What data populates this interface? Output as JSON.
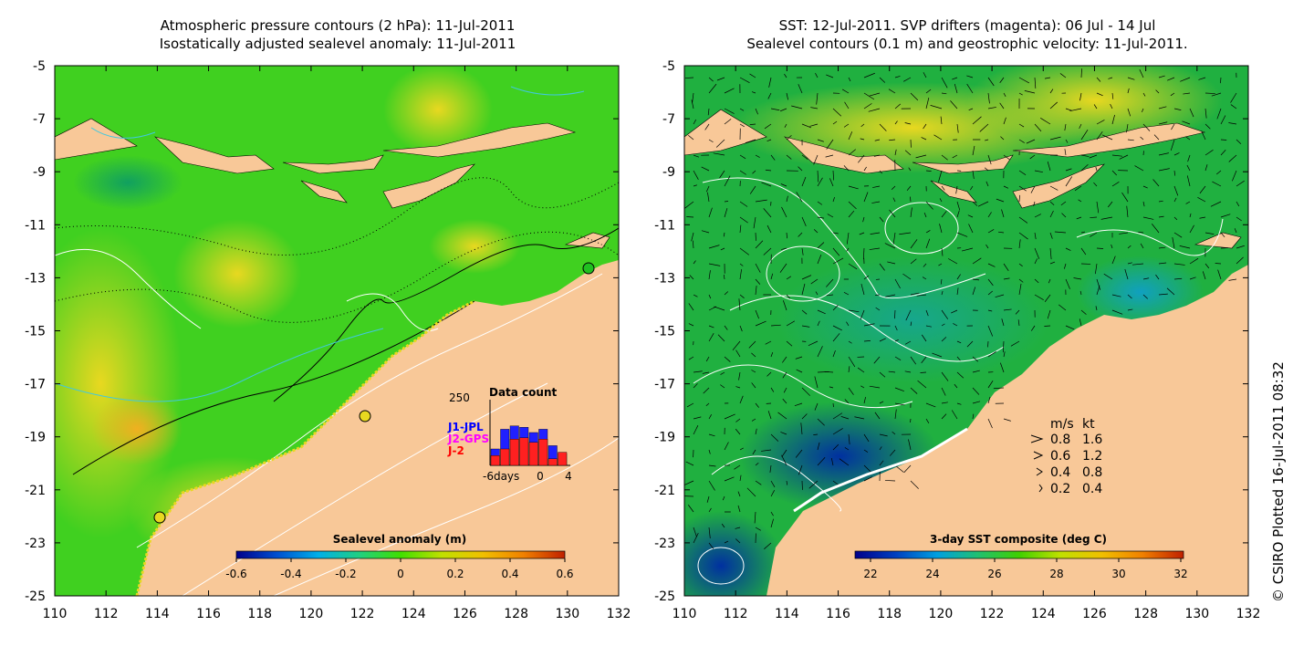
{
  "left_panel": {
    "title_line1": "Atmospheric pressure contours (2 hPa): 11-Jul-2011",
    "title_line2": "Isostatically adjusted sealevel anomaly: 11-Jul-2011",
    "x_ticks": [
      "110",
      "112",
      "114",
      "116",
      "118",
      "120",
      "122",
      "124",
      "126",
      "128",
      "130",
      "132"
    ],
    "y_ticks": [
      "-5",
      "-7",
      "-9",
      "-11",
      "-13",
      "-15",
      "-17",
      "-19",
      "-21",
      "-23",
      "-25"
    ],
    "colorbar": {
      "title": "Sealevel anomaly (m)",
      "ticks": [
        "-0.6",
        "-0.4",
        "-0.2",
        "0",
        "0.2",
        "0.4",
        "0.6"
      ],
      "colors": [
        "#00008b",
        "#0050d0",
        "#00b0e8",
        "#20d080",
        "#40e000",
        "#c0e000",
        "#f0c000",
        "#f08000",
        "#c02000"
      ]
    },
    "inset": {
      "title": "Data count",
      "y_max_label": "250",
      "legend": [
        {
          "label": "J1-JPL",
          "color": "#0000ff"
        },
        {
          "label": "J2-GPS",
          "color": "#ff00ff"
        },
        {
          "label": "J-2",
          "color": "#ff0000"
        }
      ],
      "x_labels": [
        "-6days",
        "0",
        "4"
      ],
      "bars_j1": [
        0.25,
        0.55,
        0.6,
        0.58,
        0.5,
        0.55,
        0.3,
        0.18
      ],
      "bars_j2": [
        0.15,
        0.25,
        0.4,
        0.42,
        0.35,
        0.4,
        0.1,
        0.2
      ]
    }
  },
  "right_panel": {
    "title_line1": "SST: 12-Jul-2011. SVP drifters (magenta): 06 Jul - 14 Jul",
    "title_line2": "Sealevel contours (0.1 m) and geostrophic velocity: 11-Jul-2011.",
    "x_ticks": [
      "110",
      "112",
      "114",
      "116",
      "118",
      "120",
      "122",
      "124",
      "126",
      "128",
      "130",
      "132"
    ],
    "y_ticks": [
      "-5",
      "-7",
      "-9",
      "-11",
      "-13",
      "-15",
      "-17",
      "-19",
      "-21",
      "-23",
      "-25"
    ],
    "colorbar": {
      "title": "3-day SST composite (deg C)",
      "ticks": [
        "22",
        "24",
        "26",
        "28",
        "30",
        "32"
      ],
      "colors": [
        "#00008b",
        "#0040c0",
        "#00a0e0",
        "#20c070",
        "#40d000",
        "#c0e000",
        "#f0c000",
        "#f08000",
        "#c02000"
      ]
    },
    "velocity_legend": {
      "header_ms": "m/s",
      "header_kt": "kt",
      "rows": [
        {
          "ms": "0.8",
          "kt": "1.6"
        },
        {
          "ms": "0.6",
          "kt": "1.2"
        },
        {
          "ms": "0.4",
          "kt": "0.8"
        },
        {
          "ms": "0.2",
          "kt": "0.4"
        }
      ]
    }
  },
  "credit": "© CSIRO Plotted 16-Jul-2011 08:32",
  "colors": {
    "land": "#f8c898",
    "left_ocean": "#40d020",
    "right_ocean": "#20b040",
    "contour_white": "#ffffff",
    "arrows": "#000000"
  }
}
